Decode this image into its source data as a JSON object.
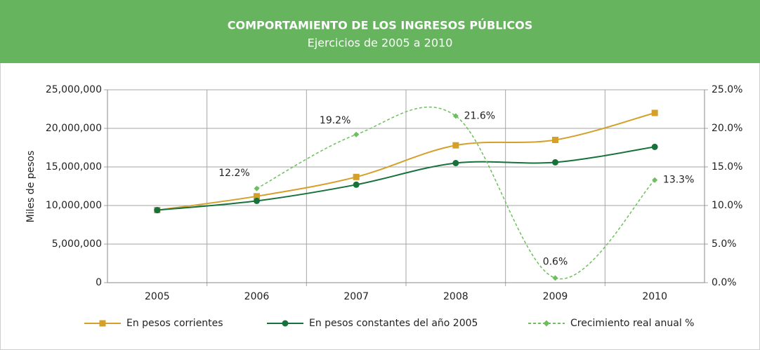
{
  "chart_data": {
    "type": "line",
    "title": "COMPORTAMIENTO DE LOS INGRESOS PÚBLICOS",
    "subtitle": "Ejercicios de 2005 a 2010",
    "ylabel": "Miles de pesos",
    "categories": [
      "2005",
      "2006",
      "2007",
      "2008",
      "2009",
      "2010"
    ],
    "ylim": [
      0,
      25000000
    ],
    "yticks": [
      0,
      {
        "value": 5000000,
        "label": "5,000,000"
      },
      {
        "value": 10000000,
        "label": "10,000,000"
      },
      {
        "value": 15000000,
        "label": "15,000,000"
      },
      {
        "value": 20000000,
        "label": "20,000,000"
      },
      {
        "value": 25000000,
        "label": "25,000,000"
      }
    ],
    "y2lim": [
      0,
      25
    ],
    "y2ticks": [
      {
        "value": 0,
        "label": "0.0%"
      },
      {
        "value": 5,
        "label": "5.0%"
      },
      {
        "value": 10,
        "label": "10.0%"
      },
      {
        "value": 15,
        "label": "15.0%"
      },
      {
        "value": 20,
        "label": "20.0%"
      },
      {
        "value": 25,
        "label": "25.0%"
      }
    ],
    "grid": true,
    "legend": "bottom",
    "series": [
      {
        "name": "En pesos corrientes",
        "color": "#d4a02a",
        "marker": "square",
        "values": [
          9400000,
          11200000,
          13700000,
          17800000,
          18500000,
          22000000
        ]
      },
      {
        "name": "En pesos constantes del año 2005",
        "color": "#17713a",
        "marker": "circle",
        "values": [
          9400000,
          10600000,
          12700000,
          15500000,
          15600000,
          17600000
        ]
      },
      {
        "name": "Crecimiento real anual %",
        "color": "#6cbf5c",
        "marker": "diamond",
        "dashed": true,
        "axis": "y2",
        "values": [
          null,
          12.2,
          19.2,
          21.6,
          0.6,
          13.3
        ],
        "value_labels": [
          null,
          "12.2%",
          "19.2%",
          "21.6%",
          "0.6%",
          "13.3%"
        ]
      }
    ]
  }
}
